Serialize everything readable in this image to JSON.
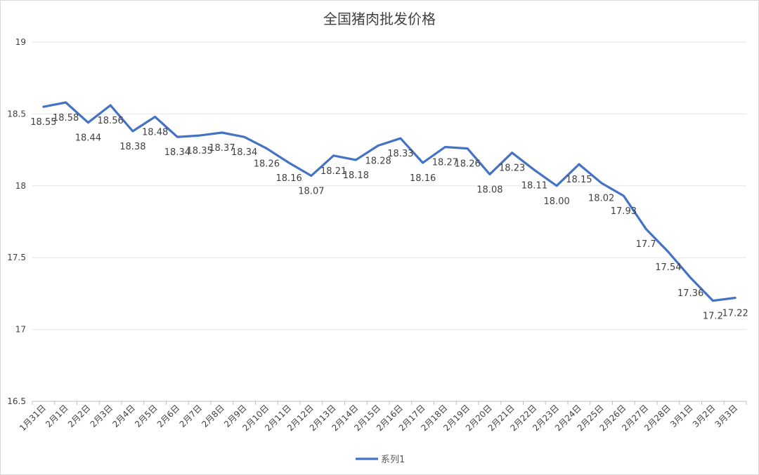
{
  "chart_data": {
    "type": "line",
    "title": "全国猪肉批发价格",
    "xlabel": "",
    "ylabel": "",
    "ylim": [
      16.5,
      19
    ],
    "yticks": [
      "16.5",
      "17",
      "17.5",
      "18",
      "18.5",
      "19"
    ],
    "grid": true,
    "legend_position": "bottom",
    "colors": {
      "series": "#4472c4",
      "grid": "#e6e6e6",
      "text": "#404040"
    },
    "categories": [
      "1月31日",
      "2月1日",
      "2月2日",
      "2月3日",
      "2月4日",
      "2月5日",
      "2月6日",
      "2月7日",
      "2月8日",
      "2月9日",
      "2月10日",
      "2月11日",
      "2月12日",
      "2月13日",
      "2月14日",
      "2月15日",
      "2月16日",
      "2月17日",
      "2月18日",
      "2月19日",
      "2月20日",
      "2月21日",
      "2月22日",
      "2月23日",
      "2月24日",
      "2月25日",
      "2月26日",
      "2月27日",
      "2月28日",
      "3月1日",
      "3月2日",
      "3月3日"
    ],
    "series": [
      {
        "name": "系列1",
        "values": [
          18.55,
          18.58,
          18.44,
          18.56,
          18.38,
          18.48,
          18.34,
          18.35,
          18.37,
          18.34,
          18.26,
          18.16,
          18.07,
          18.21,
          18.18,
          18.28,
          18.33,
          18.16,
          18.27,
          18.26,
          18.08,
          18.23,
          18.11,
          18.0,
          18.15,
          18.02,
          17.93,
          17.7,
          17.54,
          17.36,
          17.2,
          17.22
        ],
        "labels": [
          "18.55",
          "18.58",
          "18.44",
          "18.56",
          "18.38",
          "18.48",
          "18.34",
          "18.35",
          "18.37",
          "18.34",
          "18.26",
          "18.16",
          "18.07",
          "18.21",
          "18.18",
          "18.28",
          "18.33",
          "18.16",
          "18.27",
          "18.26",
          "18.08",
          "18.23",
          "18.11",
          "18.00",
          "18.15",
          "18.02",
          "17.93",
          "17.7",
          "17.54",
          "17.36",
          "17.2",
          "17.22"
        ]
      }
    ]
  }
}
